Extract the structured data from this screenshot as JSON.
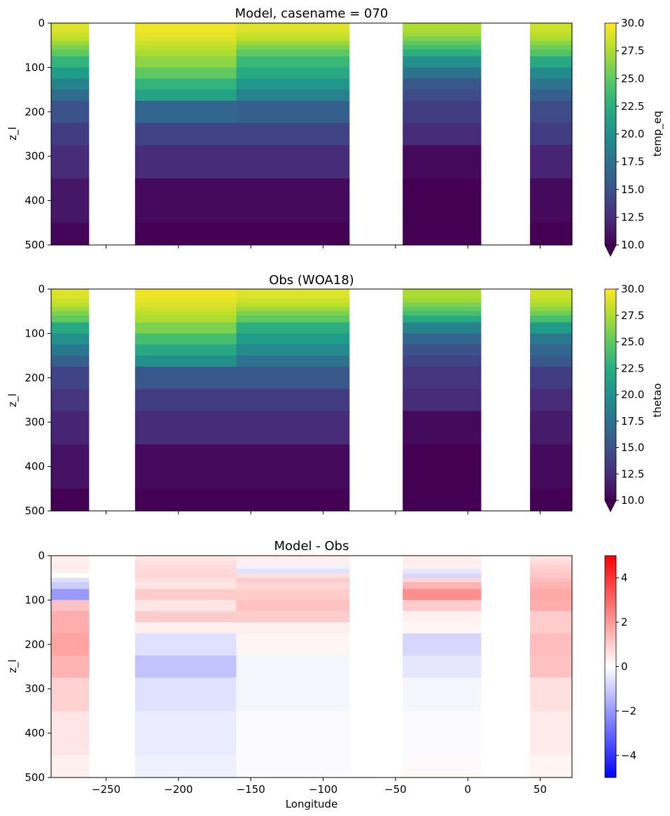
{
  "chart_data": [
    {
      "type": "heatmap",
      "title": "Model, casename = 070",
      "ylabel": "z_l",
      "xlabel": "",
      "xlim": [
        -288,
        72
      ],
      "ylim": [
        500,
        0
      ],
      "xticks": [
        -250,
        -200,
        -150,
        -100,
        -50,
        0,
        50
      ],
      "yticks": [
        0,
        100,
        200,
        300,
        400,
        500
      ],
      "ytick_labels": [
        "0",
        "100",
        "200",
        "300",
        "400",
        "500"
      ],
      "colormap": "viridis",
      "colorbar": {
        "label": "temp_eq",
        "range": [
          10,
          30
        ],
        "extend": "min",
        "ticks": [
          10.0,
          12.5,
          15.0,
          17.5,
          20.0,
          22.5,
          25.0,
          27.5,
          30.0
        ],
        "tick_labels": [
          "10.0",
          "12.5",
          "15.0",
          "17.5",
          "20.0",
          "22.5",
          "25.0",
          "27.5",
          "30.0"
        ]
      },
      "depth_layers": [
        [
          0,
          10
        ],
        [
          10,
          20
        ],
        [
          20,
          30
        ],
        [
          30,
          40
        ],
        [
          40,
          50
        ],
        [
          50,
          60
        ],
        [
          60,
          75
        ],
        [
          75,
          100
        ],
        [
          100,
          125
        ],
        [
          125,
          150
        ],
        [
          150,
          175
        ],
        [
          175,
          225
        ],
        [
          225,
          275
        ],
        [
          275,
          350
        ],
        [
          350,
          450
        ],
        [
          450,
          500
        ]
      ],
      "longitude_segments": [
        {
          "lon": [
            -288,
            -262
          ],
          "temps": [
            29.0,
            29.0,
            28.5,
            28.0,
            27.0,
            26.0,
            25.0,
            23.0,
            21.0,
            19.0,
            17.0,
            15.0,
            13.5,
            12.5,
            11.2,
            10.3
          ]
        },
        {
          "lon": [
            -230,
            -160
          ],
          "temps": [
            29.5,
            29.5,
            29.3,
            29.0,
            28.5,
            28.0,
            27.5,
            26.5,
            25.0,
            23.0,
            21.5,
            16.5,
            14.0,
            12.5,
            10.5,
            10.0
          ]
        },
        {
          "lon": [
            -160,
            -82
          ],
          "temps": [
            29.0,
            29.0,
            28.5,
            28.0,
            27.0,
            26.0,
            25.0,
            23.5,
            22.0,
            20.5,
            19.0,
            16.0,
            14.0,
            12.5,
            10.5,
            10.0
          ]
        },
        {
          "lon": [
            -45,
            9
          ],
          "temps": [
            27.5,
            27.5,
            27.0,
            26.0,
            25.0,
            24.0,
            22.5,
            20.0,
            17.5,
            15.5,
            14.5,
            13.5,
            12.5,
            10.5,
            10.0,
            10.0
          ]
        },
        {
          "lon": [
            43,
            72
          ],
          "temps": [
            28.5,
            28.5,
            28.0,
            27.5,
            26.5,
            25.5,
            24.5,
            22.0,
            19.5,
            17.5,
            16.0,
            14.5,
            13.5,
            12.0,
            10.5,
            10.0
          ]
        }
      ]
    },
    {
      "type": "heatmap",
      "title": "Obs (WOA18)",
      "ylabel": "z_l",
      "xlabel": "",
      "xlim": [
        -288,
        72
      ],
      "ylim": [
        500,
        0
      ],
      "xticks": [
        -250,
        -200,
        -150,
        -100,
        -50,
        0,
        50
      ],
      "yticks": [
        0,
        100,
        200,
        300,
        400,
        500
      ],
      "ytick_labels": [
        "0",
        "100",
        "200",
        "300",
        "400",
        "500"
      ],
      "colormap": "viridis",
      "colorbar": {
        "label": "thetao",
        "range": [
          10,
          30
        ],
        "extend": "min",
        "ticks": [
          10.0,
          12.5,
          15.0,
          17.5,
          20.0,
          22.5,
          25.0,
          27.5,
          30.0
        ],
        "tick_labels": [
          "10.0",
          "12.5",
          "15.0",
          "17.5",
          "20.0",
          "22.5",
          "25.0",
          "27.5",
          "30.0"
        ]
      },
      "depth_layers": [
        [
          0,
          10
        ],
        [
          10,
          20
        ],
        [
          20,
          30
        ],
        [
          30,
          40
        ],
        [
          40,
          50
        ],
        [
          50,
          60
        ],
        [
          60,
          75
        ],
        [
          75,
          100
        ],
        [
          100,
          125
        ],
        [
          125,
          150
        ],
        [
          150,
          175
        ],
        [
          175,
          225
        ],
        [
          225,
          275
        ],
        [
          275,
          350
        ],
        [
          350,
          450
        ],
        [
          450,
          500
        ]
      ],
      "longitude_segments": [
        {
          "lon": [
            -288,
            -262
          ],
          "temps": [
            29.0,
            29.0,
            28.5,
            28.0,
            27.0,
            26.0,
            25.0,
            22.0,
            20.0,
            18.0,
            16.0,
            14.0,
            13.0,
            12.0,
            11.0,
            10.0
          ]
        },
        {
          "lon": [
            -230,
            -160
          ],
          "temps": [
            29.5,
            29.5,
            29.3,
            29.0,
            28.5,
            28.0,
            27.5,
            26.0,
            24.0,
            22.0,
            20.0,
            15.5,
            13.5,
            12.5,
            10.5,
            10.0
          ]
        },
        {
          "lon": [
            -160,
            -82
          ],
          "temps": [
            29.0,
            29.0,
            28.5,
            28.0,
            27.0,
            26.0,
            25.0,
            22.5,
            21.0,
            19.5,
            17.5,
            15.5,
            13.5,
            12.5,
            10.5,
            10.0
          ]
        },
        {
          "lon": [
            -45,
            9
          ],
          "temps": [
            27.5,
            27.5,
            27.0,
            26.0,
            25.0,
            24.0,
            22.0,
            19.0,
            16.5,
            15.0,
            14.0,
            13.0,
            12.5,
            10.5,
            10.0,
            10.0
          ]
        },
        {
          "lon": [
            43,
            72
          ],
          "temps": [
            28.5,
            28.5,
            28.0,
            27.5,
            26.5,
            25.5,
            24.0,
            21.0,
            18.0,
            16.5,
            15.5,
            13.5,
            12.5,
            11.5,
            10.5,
            10.0
          ]
        }
      ]
    },
    {
      "type": "heatmap",
      "title": "Model - Obs",
      "ylabel": "z_l",
      "xlabel": "Longitude",
      "xlim": [
        -288,
        72
      ],
      "ylim": [
        500,
        0
      ],
      "xticks": [
        -250,
        -200,
        -150,
        -100,
        -50,
        0,
        50
      ],
      "xtick_labels": [
        "−250",
        "−200",
        "−150",
        "−100",
        "−50",
        "0",
        "50"
      ],
      "yticks": [
        0,
        100,
        200,
        300,
        400,
        500
      ],
      "ytick_labels": [
        "0",
        "100",
        "200",
        "300",
        "400",
        "500"
      ],
      "colormap": "bwr",
      "colorbar": {
        "label": "",
        "range": [
          -5,
          5
        ],
        "ticks": [
          -4,
          -2,
          0,
          2,
          4
        ],
        "tick_labels": [
          "−4",
          "−2",
          "0",
          "2",
          "4"
        ]
      },
      "depth_layers": [
        [
          0,
          10
        ],
        [
          10,
          20
        ],
        [
          20,
          30
        ],
        [
          30,
          40
        ],
        [
          40,
          50
        ],
        [
          50,
          60
        ],
        [
          60,
          75
        ],
        [
          75,
          100
        ],
        [
          100,
          125
        ],
        [
          125,
          150
        ],
        [
          150,
          175
        ],
        [
          175,
          225
        ],
        [
          225,
          275
        ],
        [
          275,
          350
        ],
        [
          350,
          450
        ],
        [
          450,
          500
        ]
      ],
      "longitude_segments": [
        {
          "lon": [
            -288,
            -262
          ],
          "diffs": [
            0.3,
            0.3,
            0.4,
            0.3,
            0.0,
            -0.6,
            -1.0,
            -2.0,
            1.2,
            1.6,
            1.6,
            1.8,
            1.5,
            0.9,
            0.5,
            0.3
          ]
        },
        {
          "lon": [
            -230,
            -160
          ],
          "diffs": [
            0.5,
            0.6,
            0.7,
            0.7,
            0.8,
            0.6,
            0.5,
            1.0,
            0.5,
            1.0,
            0.3,
            -0.6,
            -1.2,
            -0.6,
            -0.4,
            -0.3
          ]
        },
        {
          "lon": [
            -160,
            -82
          ],
          "diffs": [
            0.3,
            0.3,
            -0.3,
            -0.6,
            0.6,
            1.0,
            0.8,
            1.0,
            1.2,
            1.0,
            0.3,
            0.2,
            -0.2,
            -0.2,
            -0.1,
            -0.1
          ]
        },
        {
          "lon": [
            -45,
            9
          ],
          "diffs": [
            0.3,
            0.4,
            0.3,
            -0.5,
            -0.8,
            0.8,
            1.5,
            2.2,
            1.0,
            0.3,
            0.2,
            -0.8,
            -0.5,
            -0.2,
            -0.1,
            0.1
          ]
        },
        {
          "lon": [
            43,
            72
          ],
          "diffs": [
            0.5,
            0.7,
            0.9,
            1.0,
            1.1,
            1.3,
            1.5,
            1.7,
            1.6,
            1.0,
            1.0,
            1.3,
            1.2,
            0.6,
            0.4,
            0.2
          ]
        }
      ]
    }
  ]
}
